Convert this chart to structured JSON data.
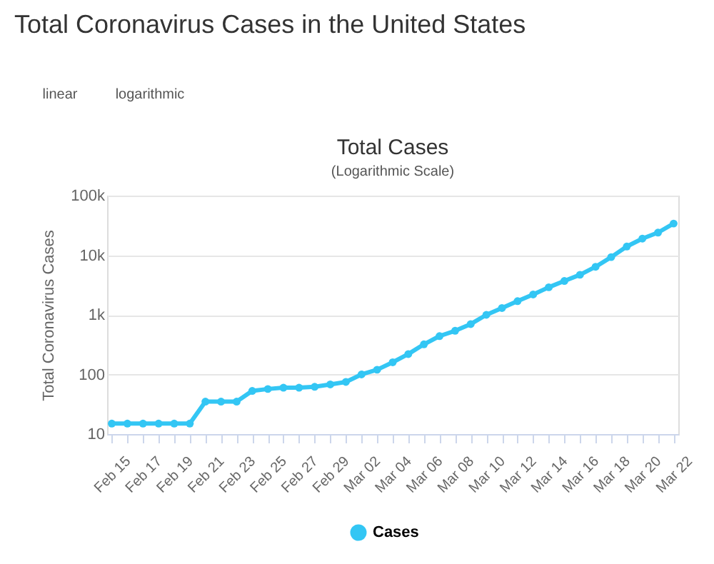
{
  "chart_data": {
    "type": "line",
    "title": "Total Cases",
    "subtitle": "(Logarithmic Scale)",
    "ylabel": "Total Coronavirus Cases",
    "annotations": [
      "Total Coronavirus Cases in the United States",
      "linear",
      "logarithmic"
    ],
    "categories": [
      "Feb 15",
      null,
      "Feb 17",
      null,
      "Feb 19",
      null,
      "Feb 21",
      null,
      "Feb 23",
      null,
      "Feb 25",
      null,
      "Feb 27",
      null,
      "Feb 29",
      null,
      "Mar 02",
      null,
      "Mar 04",
      null,
      "Mar 06",
      null,
      "Mar 08",
      null,
      "Mar 10",
      null,
      "Mar 12",
      null,
      "Mar 14",
      null,
      "Mar 16",
      null,
      "Mar 18",
      null,
      "Mar 20",
      null,
      "Mar 22"
    ],
    "series": [
      {
        "name": "Cases",
        "color": "#33c6f4",
        "values": [
          15,
          15,
          15,
          15,
          15,
          15,
          35,
          35,
          35,
          53,
          57,
          60,
          60,
          62,
          68,
          75,
          100,
          120,
          160,
          220,
          320,
          440,
          540,
          700,
          1000,
          1300,
          1700,
          2200,
          2900,
          3700,
          4700,
          6400,
          9300,
          14000,
          19000,
          24000,
          34000
        ]
      }
    ],
    "log": true,
    "ylim": [
      10,
      100000
    ],
    "yticks": [
      10,
      100,
      {
        "value": 1000,
        "label": "1k"
      },
      {
        "value": 10000,
        "label": "10k"
      },
      {
        "value": 100000,
        "label": "100k"
      }
    ],
    "grid": "y",
    "legend": "bottom",
    "marker": "circle",
    "line_style": "solid"
  }
}
